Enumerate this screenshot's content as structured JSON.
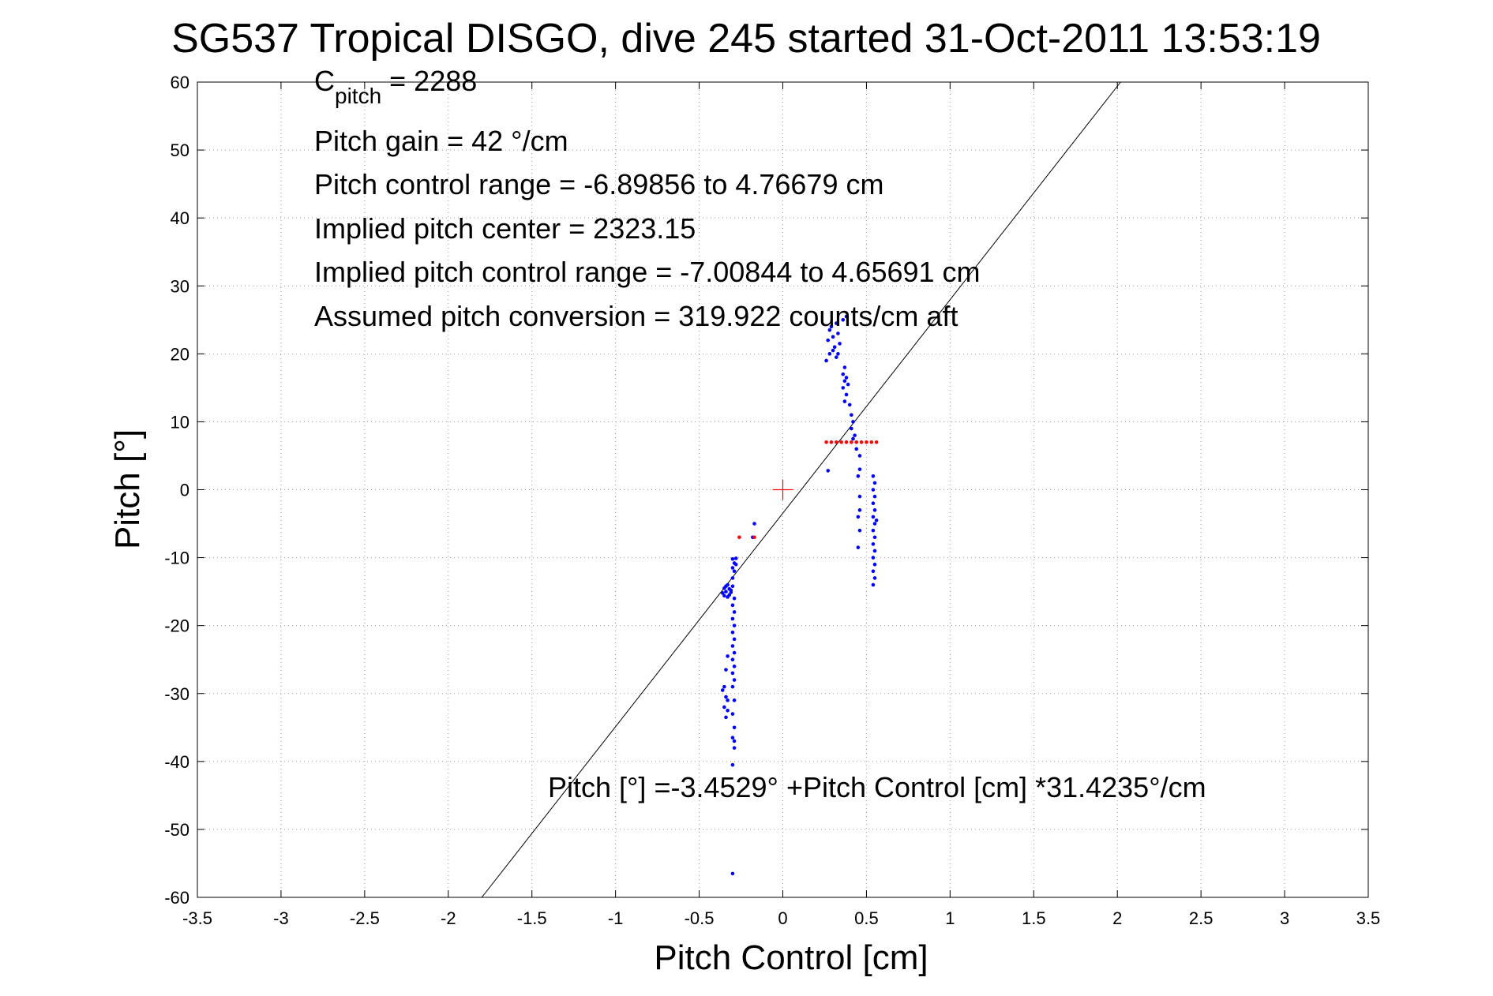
{
  "chart_data": {
    "type": "scatter",
    "title": "SG537 Tropical DISGO, dive 245 started 31-Oct-2011 13:53:19",
    "xlabel": "Pitch Control [cm]",
    "ylabel": "Pitch [°]",
    "xlim": [
      -3.5,
      3.5
    ],
    "ylim": [
      -60,
      60
    ],
    "x_ticks": [
      -3.5,
      -3,
      -2.5,
      -2,
      -1.5,
      -1,
      -0.5,
      0,
      0.5,
      1,
      1.5,
      2,
      2.5,
      3,
      3.5
    ],
    "x_tick_labels": [
      "-3.5",
      "-3",
      "-2.5",
      "-2",
      "-1.5",
      "-1",
      "-0.5",
      "0",
      "0.5",
      "1",
      "1.5",
      "2",
      "2.5",
      "3",
      "3.5"
    ],
    "y_ticks": [
      -60,
      -50,
      -40,
      -30,
      -20,
      -10,
      0,
      10,
      20,
      30,
      40,
      50,
      60
    ],
    "y_tick_labels": [
      "-60",
      "-50",
      "-40",
      "-30",
      "-20",
      "-10",
      "0",
      "10",
      "20",
      "30",
      "40",
      "50",
      "60"
    ],
    "grid": true,
    "annotations": {
      "cpitch_base": "C",
      "cpitch_sub": "pitch",
      "cpitch_rest": " = 2288",
      "line2": "Pitch gain = 42 °/cm",
      "line3": "Pitch control range = -6.89856 to 4.76679 cm",
      "line4": "Implied pitch center = 2323.15",
      "line5": "Implied pitch control range = -7.00844 to 4.65691 cm",
      "line6": "Assumed pitch conversion = 319.922 counts/cm aft",
      "fit_text": "Pitch [°] =-3.4529° +Pitch Control [cm] *31.4235°/cm"
    },
    "fit_line": {
      "intercept": -3.4529,
      "slope": 31.4235,
      "color": "#000000"
    },
    "center_marker": {
      "x": 0,
      "y": 0,
      "color": "#ff0000"
    },
    "series": [
      {
        "color": "#0000ff",
        "points": [
          [
            -0.35,
            -14.5
          ],
          [
            -0.34,
            -15
          ],
          [
            -0.33,
            -14
          ],
          [
            -0.32,
            -15.5
          ],
          [
            -0.31,
            -14.8
          ],
          [
            -0.3,
            -14.2
          ],
          [
            -0.36,
            -15.2
          ],
          [
            -0.34,
            -14.2
          ],
          [
            -0.32,
            -14.6
          ],
          [
            -0.33,
            -15.8
          ],
          [
            -0.31,
            -15.1
          ],
          [
            -0.35,
            -15.6
          ],
          [
            -0.3,
            -10.2
          ],
          [
            -0.29,
            -10.8
          ],
          [
            -0.28,
            -10.1
          ],
          [
            -0.3,
            -11.5
          ],
          [
            -0.29,
            -12
          ],
          [
            -0.28,
            -11
          ],
          [
            -0.3,
            -13
          ],
          [
            -0.29,
            -16
          ],
          [
            -0.3,
            -17
          ],
          [
            -0.29,
            -18
          ],
          [
            -0.3,
            -19
          ],
          [
            -0.29,
            -20
          ],
          [
            -0.3,
            -21
          ],
          [
            -0.29,
            -22
          ],
          [
            -0.3,
            -23
          ],
          [
            -0.29,
            -24
          ],
          [
            -0.3,
            -25
          ],
          [
            -0.29,
            -26
          ],
          [
            -0.3,
            -27
          ],
          [
            -0.29,
            -28
          ],
          [
            -0.3,
            -29
          ],
          [
            -0.29,
            -31
          ],
          [
            -0.3,
            -33
          ],
          [
            -0.29,
            -35
          ],
          [
            -0.3,
            -36.5
          ],
          [
            -0.29,
            -37
          ],
          [
            -0.29,
            -38
          ],
          [
            -0.3,
            -40.5
          ],
          [
            -0.3,
            -56.5
          ],
          [
            -0.33,
            -24.5
          ],
          [
            -0.34,
            -26.5
          ],
          [
            -0.35,
            -29
          ],
          [
            -0.36,
            -29.5
          ],
          [
            -0.34,
            -30.5
          ],
          [
            -0.33,
            -31
          ],
          [
            -0.35,
            -32
          ],
          [
            -0.34,
            -33.5
          ],
          [
            -0.33,
            -32.5
          ],
          [
            -0.17,
            -5
          ],
          [
            -0.18,
            -7
          ],
          [
            0.26,
            19
          ],
          [
            0.28,
            20
          ],
          [
            0.27,
            22
          ],
          [
            0.28,
            23.5
          ],
          [
            0.29,
            24
          ],
          [
            0.3,
            20.5
          ],
          [
            0.3,
            22.5
          ],
          [
            0.31,
            21
          ],
          [
            0.32,
            19.5
          ],
          [
            0.33,
            20
          ],
          [
            0.34,
            21.5
          ],
          [
            0.33,
            23
          ],
          [
            0.32,
            24.5
          ],
          [
            0.36,
            25
          ],
          [
            0.37,
            18
          ],
          [
            0.36,
            17
          ],
          [
            0.37,
            16
          ],
          [
            0.36,
            15
          ],
          [
            0.38,
            14
          ],
          [
            0.37,
            13
          ],
          [
            0.38,
            16.5
          ],
          [
            0.39,
            15.5
          ],
          [
            0.38,
            25.5
          ],
          [
            0.4,
            12.5
          ],
          [
            0.41,
            11
          ],
          [
            0.42,
            10
          ],
          [
            0.41,
            9
          ],
          [
            0.43,
            8
          ],
          [
            0.42,
            7.5
          ],
          [
            0.44,
            6
          ],
          [
            0.27,
            2.8
          ],
          [
            0.46,
            5
          ],
          [
            0.46,
            3
          ],
          [
            0.45,
            2
          ],
          [
            0.46,
            -1
          ],
          [
            0.46,
            -3
          ],
          [
            0.45,
            -4
          ],
          [
            0.46,
            -6
          ],
          [
            0.45,
            -8.5
          ],
          [
            0.54,
            2
          ],
          [
            0.55,
            1
          ],
          [
            0.54,
            0
          ],
          [
            0.55,
            -1
          ],
          [
            0.54,
            -2
          ],
          [
            0.55,
            -3
          ],
          [
            0.54,
            -4
          ],
          [
            0.56,
            -4.5
          ],
          [
            0.55,
            -5
          ],
          [
            0.54,
            -6
          ],
          [
            0.55,
            -7
          ],
          [
            0.54,
            -8
          ],
          [
            0.55,
            -9
          ],
          [
            0.54,
            -10
          ],
          [
            0.55,
            -11
          ],
          [
            0.54,
            -12
          ],
          [
            0.55,
            -13
          ],
          [
            0.54,
            -14
          ]
        ]
      },
      {
        "color": "#ff0000",
        "points": [
          [
            0.26,
            7
          ],
          [
            0.29,
            7
          ],
          [
            0.32,
            7
          ],
          [
            0.35,
            7
          ],
          [
            0.38,
            7
          ],
          [
            0.41,
            7
          ],
          [
            0.44,
            7
          ],
          [
            0.47,
            7
          ],
          [
            0.5,
            7
          ],
          [
            0.53,
            7
          ],
          [
            0.56,
            7
          ],
          [
            -0.26,
            -7
          ],
          [
            -0.17,
            -7
          ]
        ]
      }
    ]
  }
}
